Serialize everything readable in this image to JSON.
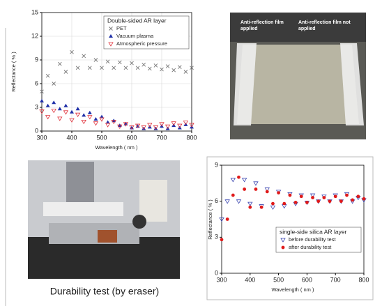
{
  "chart_data": [
    {
      "type": "scatter",
      "legend_title": "Double-sided AR layer",
      "legend": "upper right",
      "x_label": "Wavelength ( nm )",
      "y_label": "Reflectance ( % )",
      "x": [
        300,
        320,
        340,
        360,
        380,
        400,
        420,
        440,
        460,
        480,
        500,
        520,
        540,
        560,
        580,
        600,
        620,
        640,
        660,
        680,
        700,
        720,
        740,
        760,
        780,
        800
      ],
      "series": [
        {
          "name": "PET",
          "color": "#777777",
          "marker": "cross",
          "values": [
            5,
            7,
            6,
            8.5,
            7.5,
            10,
            8,
            9.5,
            8,
            9,
            8,
            8.8,
            8,
            8.7,
            8,
            8.6,
            8,
            8.4,
            7.9,
            8.3,
            7.8,
            8.2,
            7.7,
            8.1,
            7.5,
            8
          ]
        },
        {
          "name": "Vacuum plasma",
          "color": "#1f2fa8",
          "marker": "triangle",
          "values": [
            3.8,
            3.2,
            3.6,
            2.8,
            3.2,
            2.4,
            2.8,
            2,
            2.3,
            1.5,
            1.8,
            1.1,
            1.3,
            0.7,
            0.9,
            0.4,
            0.6,
            0.3,
            0.5,
            0.3,
            0.6,
            0.3,
            0.7,
            0.4,
            0.8,
            0.5
          ]
        },
        {
          "name": "Atmospheric pressure",
          "color": "#e0303a",
          "marker": "triangle-down-open",
          "values": [
            2.5,
            1.8,
            2.6,
            1.6,
            2.4,
            1.4,
            2.1,
            1.2,
            1.8,
            1,
            1.5,
            0.8,
            1.2,
            0.6,
            0.9,
            0.5,
            0.7,
            0.5,
            0.8,
            0.5,
            0.9,
            0.6,
            1,
            0.7,
            1.1,
            0.8
          ]
        }
      ],
      "xlim": [
        300,
        800
      ],
      "xticks": [
        300,
        400,
        500,
        600,
        700,
        800
      ],
      "ylim": [
        0,
        15
      ],
      "yticks": [
        0,
        3,
        6,
        9,
        12,
        15
      ],
      "grid": true
    },
    {
      "type": "scatter",
      "legend_title": "single-side silica AR layer",
      "legend": "lower right",
      "x_label": "Wavelength ( nm )",
      "y_label": "Reflectance ( % )",
      "x": [
        300,
        320,
        340,
        360,
        380,
        400,
        420,
        440,
        460,
        480,
        500,
        520,
        540,
        560,
        580,
        600,
        620,
        640,
        660,
        680,
        700,
        720,
        740,
        760,
        780,
        800
      ],
      "series": [
        {
          "name": "before durability test",
          "color": "#3a45b0",
          "marker": "triangle-down-open",
          "values": [
            4.5,
            6,
            7.8,
            6,
            7.8,
            5.8,
            7.5,
            5.6,
            7,
            5.5,
            6.8,
            5.6,
            6.6,
            5.8,
            6.5,
            5.9,
            6.5,
            6,
            6.4,
            6,
            6.5,
            6,
            6.6,
            6,
            6.3,
            6.1
          ]
        },
        {
          "name": "after durability test",
          "color": "#e01a1a",
          "marker": "dot",
          "values": [
            2.8,
            4.5,
            6.5,
            8,
            7,
            5.5,
            7,
            5.5,
            6.8,
            5.8,
            6.7,
            5.8,
            6.5,
            5.9,
            6.4,
            5.9,
            6.3,
            6,
            6.3,
            6,
            6.4,
            6,
            6.5,
            6.1,
            6.4,
            6.2
          ]
        }
      ],
      "xlim": [
        300,
        800
      ],
      "xticks": [
        300,
        400,
        500,
        600,
        700,
        800
      ],
      "ylim": [
        0,
        9
      ],
      "yticks": [
        0,
        3,
        6,
        9
      ],
      "grid": false
    }
  ],
  "photos": {
    "film": {
      "left_label": "Anti-reflection film applied",
      "right_label": "Anti-reflection film not applied"
    },
    "durability": {
      "caption": "Durability test (by eraser)"
    }
  }
}
